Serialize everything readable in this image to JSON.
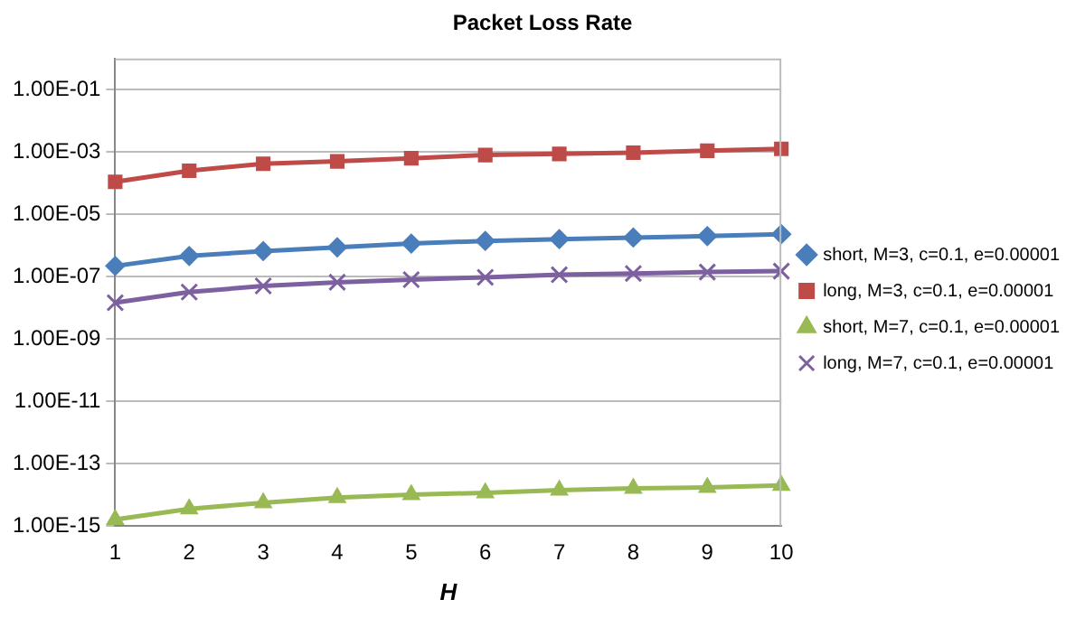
{
  "chart_data": {
    "type": "line",
    "title": "Packet Loss Rate",
    "xlabel": "H",
    "categories": [
      "1",
      "2",
      "3",
      "4",
      "5",
      "6",
      "7",
      "8",
      "9",
      "10"
    ],
    "series": [
      {
        "name": "short, M=3, c=0.1, e=0.00001",
        "color": "#4a7ebb",
        "marker": "diamond",
        "values": [
          2.2e-07,
          4.6e-07,
          6.6e-07,
          8.7e-07,
          1.15e-06,
          1.4e-06,
          1.6e-06,
          1.8e-06,
          2e-06,
          2.3e-06
        ]
      },
      {
        "name": "long, M=3, c=0.1, e=0.00001",
        "color": "#be4b48",
        "marker": "square",
        "values": [
          0.00011,
          0.00025,
          0.00042,
          0.0005,
          0.00063,
          0.0008,
          0.00087,
          0.00095,
          0.0011,
          0.00126
        ]
      },
      {
        "name": "short, M=7, c=0.1, e=0.00001",
        "color": "#98b954",
        "marker": "triangle",
        "values": [
          1.6e-15,
          3.5e-15,
          5.5e-15,
          8e-15,
          1e-14,
          1.15e-14,
          1.4e-14,
          1.6e-14,
          1.7e-14,
          2e-14
        ]
      },
      {
        "name": "long, M=7, c=0.1, e=0.00001",
        "color": "#7d60a0",
        "marker": "cross",
        "values": [
          1.45e-08,
          3.2e-08,
          5e-08,
          6.6e-08,
          8e-08,
          9.5e-08,
          1.15e-07,
          1.26e-07,
          1.4e-07,
          1.5e-07
        ]
      }
    ],
    "log": "y",
    "ylim": [
      1e-15,
      1
    ],
    "yticks": [
      {
        "value": 1e-15,
        "label": "1.00E-15"
      },
      {
        "value": 1e-13,
        "label": "1.00E-13"
      },
      {
        "value": 1e-11,
        "label": "1.00E-11"
      },
      {
        "value": 1e-09,
        "label": "1.00E-09"
      },
      {
        "value": 1e-07,
        "label": "1.00E-07"
      },
      {
        "value": 1e-05,
        "label": "1.00E-05"
      },
      {
        "value": 0.001,
        "label": "1.00E-03"
      },
      {
        "value": 0.1,
        "label": "1.00E-01"
      }
    ],
    "grid": "y",
    "legend": "right",
    "line_style": "solid"
  }
}
